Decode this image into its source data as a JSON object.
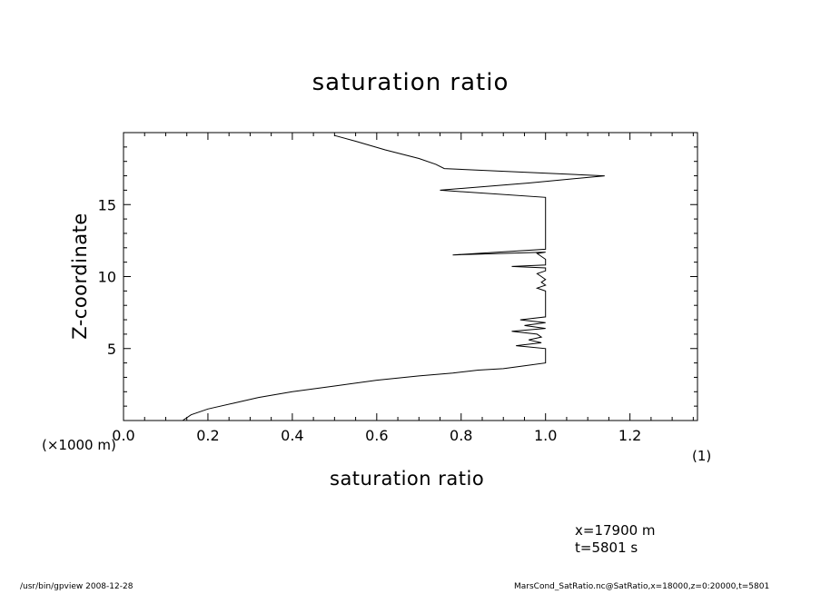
{
  "chart_data": {
    "type": "line",
    "title": "saturation ratio",
    "xlabel": "saturation ratio",
    "ylabel": "Z-coordinate",
    "y_unit": "(×1000 m)",
    "x_unit": "(1)",
    "xlim": [
      0.0,
      1.36
    ],
    "ylim": [
      0.0,
      20.0
    ],
    "x_ticks": [
      "0.0",
      "0.2",
      "0.4",
      "0.6",
      "0.8",
      "1.0",
      "1.2"
    ],
    "x_tick_values": [
      0.0,
      0.2,
      0.4,
      0.6,
      0.8,
      1.0,
      1.2
    ],
    "y_ticks": [
      "5",
      "10",
      "15"
    ],
    "y_tick_values": [
      5,
      10,
      15
    ],
    "grid": false,
    "series": [
      {
        "x": [
          0.14,
          0.16,
          0.2,
          0.26,
          0.32,
          0.4,
          0.5,
          0.6,
          0.7,
          0.78,
          0.84,
          0.9,
          0.95,
          1.0,
          1.0,
          0.93,
          0.99,
          0.96,
          0.99,
          0.98,
          0.92,
          1.0,
          0.95,
          1.0,
          0.94,
          1.0,
          1.0,
          1.0,
          1.0,
          0.98,
          1.0,
          0.99,
          1.0,
          0.99,
          0.98,
          1.0,
          1.0,
          0.92,
          1.0,
          1.0,
          0.98,
          1.0,
          0.78,
          1.0,
          1.0,
          1.0,
          1.0,
          1.0,
          0.75,
          0.96,
          1.14,
          0.76,
          0.74,
          0.7,
          0.62,
          0.55,
          0.5
        ],
        "y": [
          0.0,
          0.4,
          0.8,
          1.2,
          1.6,
          2.0,
          2.4,
          2.8,
          3.1,
          3.3,
          3.5,
          3.6,
          3.8,
          4.0,
          5.0,
          5.2,
          5.4,
          5.6,
          5.8,
          6.0,
          6.2,
          6.4,
          6.6,
          6.8,
          7.0,
          7.2,
          7.5,
          8.0,
          9.0,
          9.2,
          9.4,
          9.6,
          9.8,
          10.0,
          10.2,
          10.4,
          10.6,
          10.7,
          10.8,
          11.2,
          11.6,
          11.7,
          11.5,
          11.9,
          12.0,
          14.0,
          15.0,
          15.5,
          16.0,
          16.5,
          17.0,
          17.5,
          17.8,
          18.2,
          18.8,
          19.4,
          19.8
        ]
      }
    ]
  },
  "annotations": {
    "location_x": "x=17900  m",
    "location_t": "t=5801  s"
  },
  "footer": {
    "left": "/usr/bin/gpview   2008-12-28",
    "right": "MarsCond_SatRatio.nc@SatRatio,x=18000,z=0:20000,t=5801"
  }
}
